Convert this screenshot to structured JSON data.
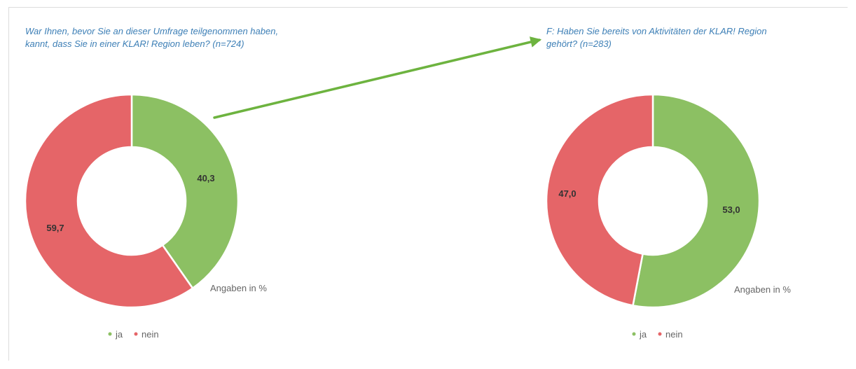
{
  "colors": {
    "ja": "#8cc063",
    "nein": "#e56568",
    "question_text": "#3d7fb6",
    "arrow": "#6db33f"
  },
  "chart_data": [
    {
      "type": "pie",
      "variant": "donut",
      "title_lines": [
        "War Ihnen, bevor Sie an dieser Umfrage teilgenommen haben,",
        "kannt, dass Sie in einer KLAR! Region leben? (n=724)"
      ],
      "unit_label": "Angaben in %",
      "slices": [
        {
          "name": "ja",
          "value": 40.3,
          "label": "40,3",
          "color": "#8cc063"
        },
        {
          "name": "nein",
          "value": 59.7,
          "label": "59,7",
          "color": "#e56568"
        }
      ],
      "legend": [
        {
          "name": "ja",
          "color": "#8cc063"
        },
        {
          "name": "nein",
          "color": "#e56568"
        }
      ],
      "legend_position": "bottom"
    },
    {
      "type": "pie",
      "variant": "donut",
      "title_lines": [
        "F: Haben Sie bereits von Aktivitäten der KLAR! Region",
        "gehört? (n=283)"
      ],
      "unit_label": "Angaben in %",
      "slices": [
        {
          "name": "ja",
          "value": 53.0,
          "label": "53,0",
          "color": "#8cc063"
        },
        {
          "name": "nein",
          "value": 47.0,
          "label": "47,0",
          "color": "#e56568"
        }
      ],
      "legend": [
        {
          "name": "ja",
          "color": "#8cc063"
        },
        {
          "name": "nein",
          "color": "#e56568"
        }
      ],
      "legend_position": "bottom"
    }
  ]
}
